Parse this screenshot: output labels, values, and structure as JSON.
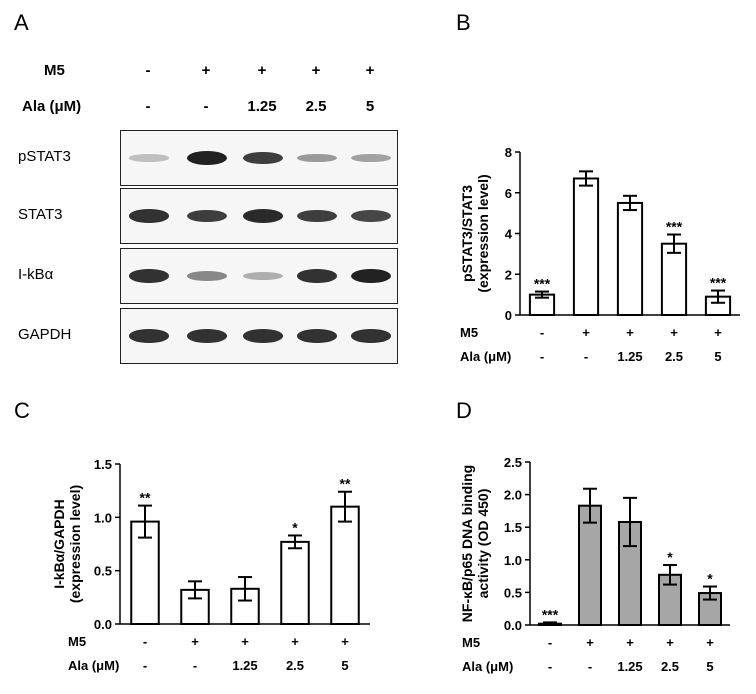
{
  "panels": {
    "a": "A",
    "b": "B",
    "c": "C",
    "d": "D"
  },
  "western_blot": {
    "treatment_rows": [
      {
        "label": "M5",
        "values": [
          "-",
          "+",
          "+",
          "+",
          "+"
        ]
      },
      {
        "label": "Ala (μM)",
        "values": [
          "-",
          "-",
          "1.25",
          "2.5",
          "5"
        ]
      }
    ],
    "blots": [
      {
        "name": "pSTAT3",
        "intensity": [
          0.15,
          1.0,
          0.85,
          0.35,
          0.3
        ]
      },
      {
        "name": "STAT3",
        "intensity": [
          0.9,
          0.85,
          0.95,
          0.85,
          0.8
        ]
      },
      {
        "name": "I-kBα",
        "intensity": [
          0.9,
          0.45,
          0.25,
          0.9,
          1.0
        ]
      },
      {
        "name": "GAPDH",
        "intensity": [
          0.9,
          0.9,
          0.9,
          0.9,
          0.9
        ]
      }
    ]
  },
  "chart_data": [
    {
      "panel": "B",
      "type": "bar",
      "categories": [
        "1",
        "2",
        "3",
        "4",
        "5"
      ],
      "values": [
        1.0,
        6.7,
        5.5,
        3.5,
        0.9
      ],
      "errors": [
        0.15,
        0.35,
        0.35,
        0.45,
        0.3
      ],
      "significance": [
        "***",
        "",
        "",
        "***",
        "***"
      ],
      "ylabel": "pSTAT3/STAT3\n(expression level)",
      "ylim": [
        0,
        8
      ],
      "yticks": [
        "0",
        "2",
        "4",
        "6",
        "8"
      ],
      "bar_color": "#ffffff",
      "condition_rows": [
        {
          "label": "M5",
          "values": [
            "-",
            "+",
            "+",
            "+",
            "+"
          ]
        },
        {
          "label": "Ala (μM)",
          "values": [
            "-",
            "-",
            "1.25",
            "2.5",
            "5"
          ]
        }
      ]
    },
    {
      "panel": "C",
      "type": "bar",
      "categories": [
        "1",
        "2",
        "3",
        "4",
        "5"
      ],
      "values": [
        0.96,
        0.32,
        0.33,
        0.77,
        1.1
      ],
      "errors": [
        0.15,
        0.08,
        0.11,
        0.06,
        0.14
      ],
      "significance": [
        "**",
        "",
        "",
        "*",
        "**"
      ],
      "ylabel": "I-kBα/GAPDH\n(expression level)",
      "ylim": [
        0,
        1.5
      ],
      "yticks": [
        "0.0",
        "0.5",
        "1.0",
        "1.5"
      ],
      "bar_color": "#ffffff",
      "condition_rows": [
        {
          "label": "M5",
          "values": [
            "-",
            "+",
            "+",
            "+",
            "+"
          ]
        },
        {
          "label": "Ala (μM)",
          "values": [
            "-",
            "-",
            "1.25",
            "2.5",
            "5"
          ]
        }
      ]
    },
    {
      "panel": "D",
      "type": "bar",
      "categories": [
        "1",
        "2",
        "3",
        "4",
        "5"
      ],
      "values": [
        0.02,
        1.83,
        1.58,
        0.77,
        0.49
      ],
      "errors": [
        0.02,
        0.26,
        0.37,
        0.15,
        0.1
      ],
      "significance": [
        "***",
        "",
        "",
        "*",
        "*"
      ],
      "ylabel": "NF-κB/p65 DNA binding\nactivity (OD 450)",
      "ylim": [
        0,
        2.5
      ],
      "yticks": [
        "0.0",
        "0.5",
        "1.0",
        "1.5",
        "2.0",
        "2.5"
      ],
      "bar_color": "#a6a6a6",
      "condition_rows": [
        {
          "label": "M5",
          "values": [
            "-",
            "+",
            "+",
            "+",
            "+"
          ]
        },
        {
          "label": "Ala (μM)",
          "values": [
            "-",
            "-",
            "1.25",
            "2.5",
            "5"
          ]
        }
      ]
    }
  ]
}
